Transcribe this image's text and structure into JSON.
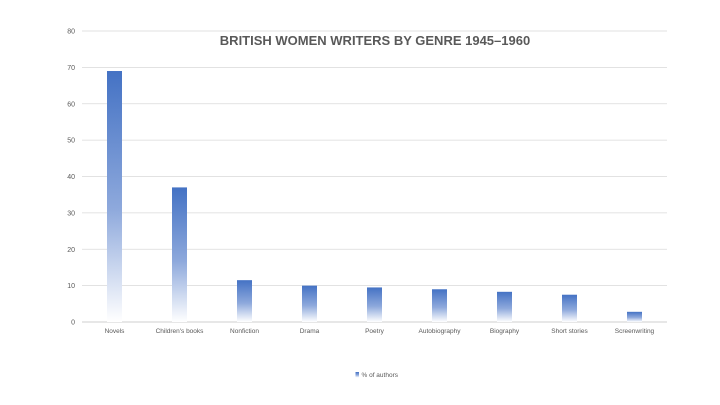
{
  "chart_data": {
    "type": "bar",
    "title": "BRITISH WOMEN WRITERS BY GENRE 1945–1960",
    "xlabel": "",
    "ylabel": "",
    "ylim": [
      0,
      80
    ],
    "yticks": [
      0,
      10,
      20,
      30,
      40,
      50,
      60,
      70,
      80
    ],
    "grid": true,
    "legend_position": "bottom",
    "categories": [
      "Novels",
      "Children's books",
      "Nonfiction",
      "Drama",
      "Poetry",
      "Autobiography",
      "Biography",
      "Short stories",
      "Screenwriting"
    ],
    "series": [
      {
        "name": "% of authors",
        "color": "#4472c4",
        "values": [
          69,
          37,
          11.5,
          10,
          9.5,
          9,
          8.3,
          7.5,
          2.8
        ]
      }
    ]
  }
}
